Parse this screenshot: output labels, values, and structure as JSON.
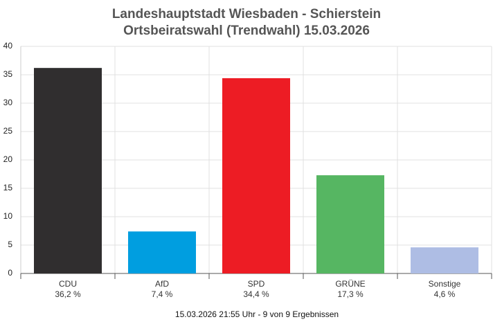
{
  "chart_data": {
    "type": "bar",
    "title": "Landeshauptstadt Wiesbaden - Schierstein",
    "subtitle": "Ortsbeiratswahl (Trendwahl) 15.03.2026",
    "categories": [
      "CDU",
      "AfD",
      "SPD",
      "GRÜNE",
      "Sonstige"
    ],
    "values": [
      36.2,
      7.4,
      34.4,
      17.3,
      4.6
    ],
    "value_labels": [
      "36,2 %",
      "7,4 %",
      "34,4 %",
      "17,3 %",
      "4,6 %"
    ],
    "colors": [
      "#302e2f",
      "#009ee0",
      "#ed1c24",
      "#56b662",
      "#aebde4"
    ],
    "ylim": [
      0,
      40
    ],
    "yticks": [
      0,
      5,
      10,
      15,
      20,
      25,
      30,
      35,
      40
    ],
    "grid": true,
    "note": "15.03.2026 21:55 Uhr - 9 von 9 Ergebnissen"
  }
}
